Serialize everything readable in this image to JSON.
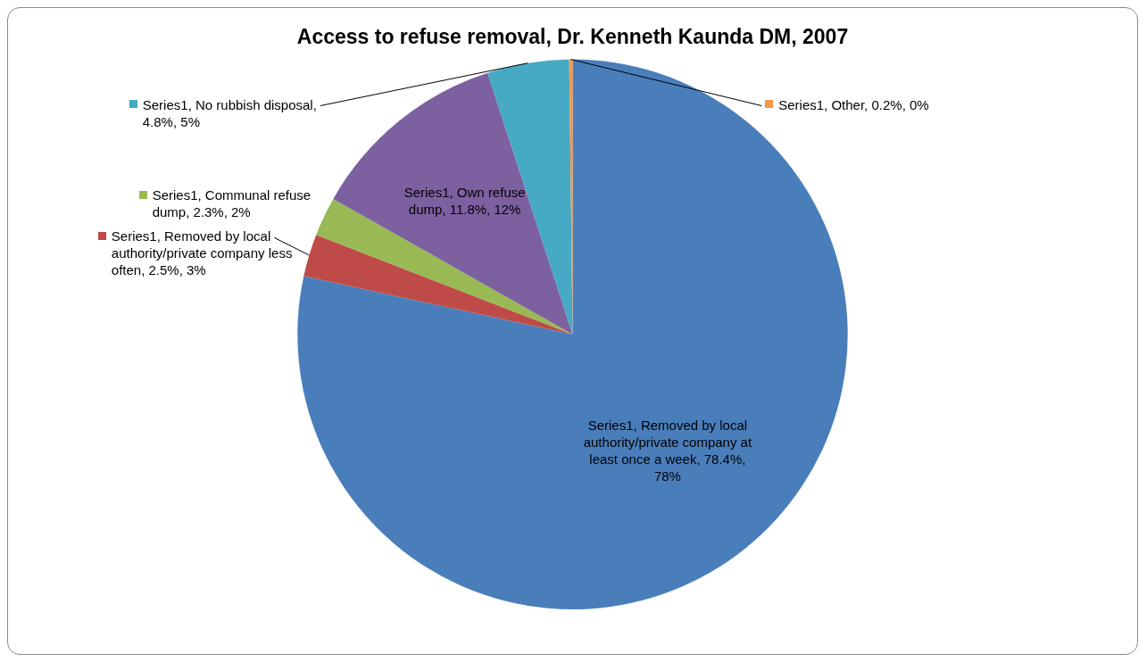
{
  "chart_data": {
    "type": "pie",
    "title": "Access to refuse removal, Dr. Kenneth Kaunda DM, 2007",
    "categories": [
      "Series1, Removed by local authority/private company at least once a week, 78.4%, 78%",
      "Series1, Removed by local authority/private company less often, 2.5%, 3%",
      "Series1, Communal refuse dump, 2.3%, 2%",
      "Series1, Own refuse dump, 11.8%, 12%",
      "Series1, No rubbish disposal, 4.8%, 5%",
      "Series1, Other, 0.2%, 0%"
    ],
    "values": [
      78.4,
      2.5,
      2.3,
      11.8,
      4.8,
      0.2
    ],
    "colors": [
      "#4a7ebb",
      "#be4b48",
      "#98b954",
      "#7d60a0",
      "#46aac5",
      "#f79646"
    ],
    "legend": "left"
  }
}
